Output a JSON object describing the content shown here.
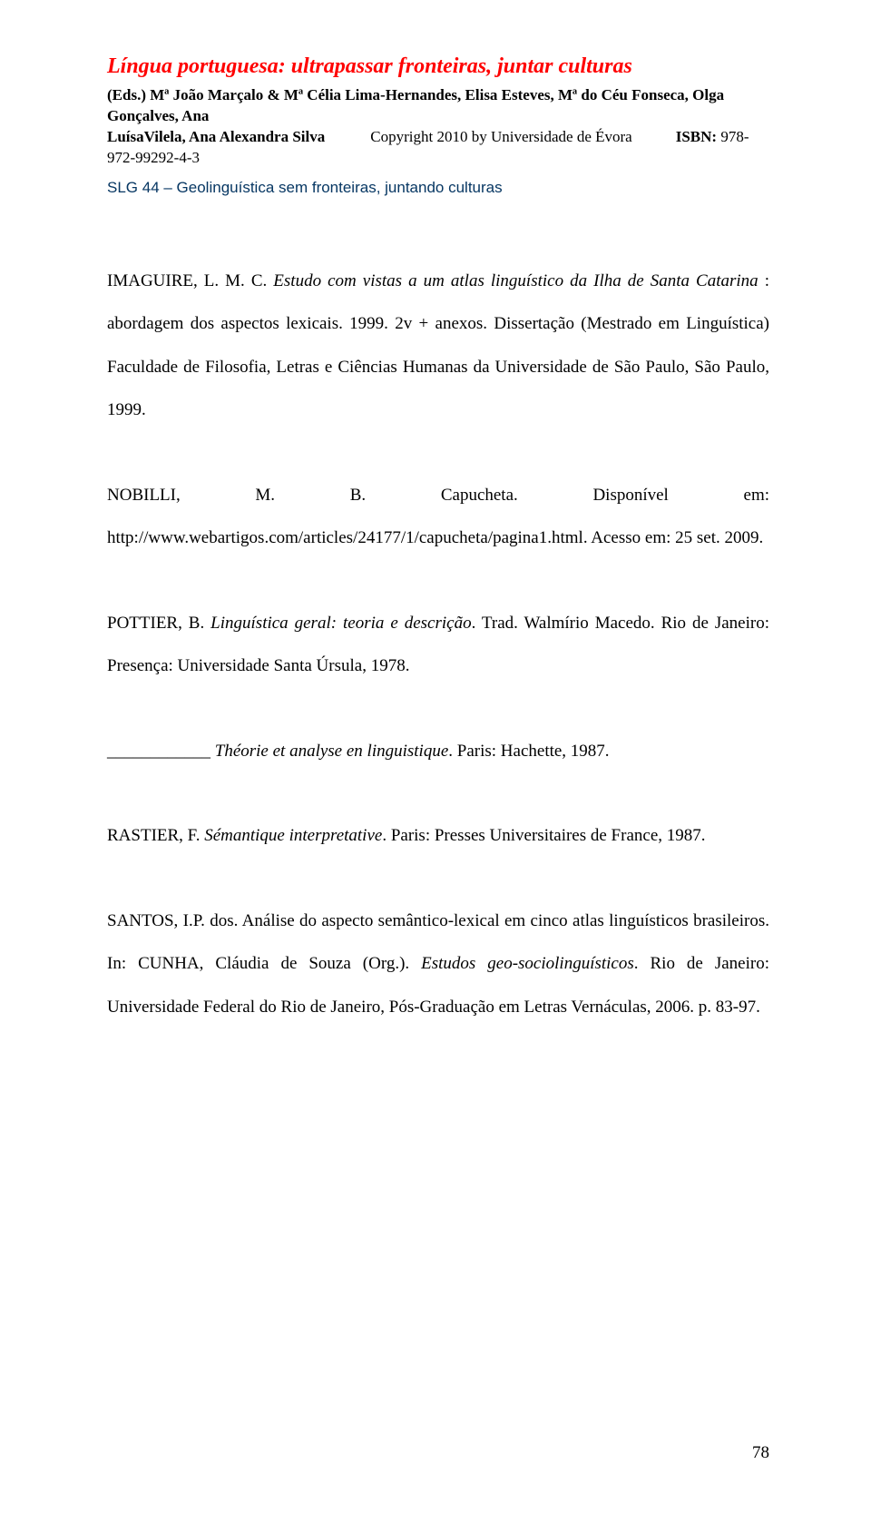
{
  "header": {
    "title": "Língua portuguesa: ultrapassar fronteiras, juntar culturas",
    "editors": "(Eds.) Mª João Marçalo & Mª Célia Lima-Hernandes, Elisa Esteves, Mª do Céu Fonseca, Olga Gonçalves, Ana",
    "line3_author": "LuísaVilela, Ana Alexandra Silva",
    "line3_copyright": "Copyright 2010 by Universidade de Évora",
    "line3_isbn_label": "ISBN:",
    "line3_isbn": "978-972-99292-4-3",
    "slg": "SLG 44 – Geolinguística sem fronteiras, juntando culturas"
  },
  "refs": {
    "p1": {
      "a": "IMAGUIRE, L. M. C. ",
      "b": "Estudo com vistas a um atlas linguístico da Ilha de Santa Catarina",
      "c": " : abordagem dos aspectos lexicais. 1999. 2v + anexos. Dissertação (Mestrado em Linguística) Faculdade de Filosofia, Letras e Ciências Humanas da Universidade de São Paulo, São Paulo, 1999."
    },
    "p2": {
      "a": "NOBILLI, M. B. Capucheta. Disponível em: http://www.webartigos.com/articles/24177/1/capucheta/pagina1.html. Acesso em: 25 set. 2009."
    },
    "p3": {
      "a": "POTTIER, B. ",
      "b": "Linguística geral: teoria e descrição",
      "c": ". Trad. Walmírio Macedo. Rio de Janeiro: Presença: Universidade Santa Úrsula, 1978."
    },
    "p4": {
      "ul": "____________",
      "a": " ",
      "b": "Théorie et analyse en linguistique",
      "c": ". Paris: Hachette, 1987."
    },
    "p5": {
      "a": "RASTIER, F. ",
      "b": "Sémantique interpretative",
      "c": ". Paris: Presses Universitaires de France, 1987."
    },
    "p6": {
      "a": "SANTOS, I.P. dos.  Análise do aspecto semântico-lexical em cinco atlas linguísticos brasileiros. In: CUNHA, Cláudia de Souza (Org.). ",
      "b": "Estudos geo-sociolinguísticos",
      "c": ". Rio de Janeiro: Universidade Federal do Rio de Janeiro, Pós-Graduação em Letras Vernáculas, 2006. p. 83-97."
    }
  },
  "page_number": "78"
}
